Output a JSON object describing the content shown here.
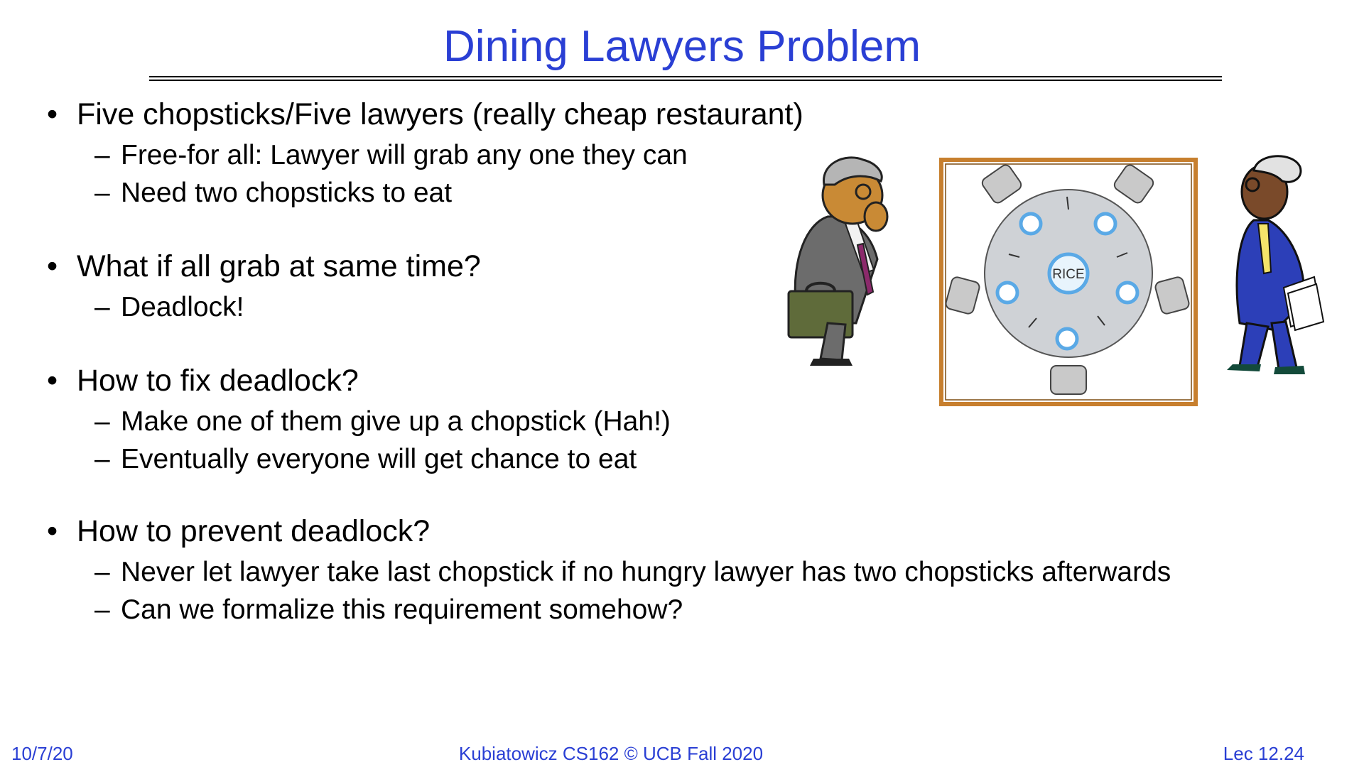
{
  "title": "Dining Lawyers Problem",
  "bullets": [
    {
      "text": "Five chopsticks/Five lawyers (really cheap restaurant)",
      "subs": [
        "Free-for all: Lawyer will grab any one they can",
        "Need two chopsticks to eat"
      ]
    },
    {
      "text": "What if all grab at same time?",
      "subs": [
        "Deadlock!"
      ]
    },
    {
      "text": "How to fix deadlock?",
      "subs": [
        "Make one of them give up a chopstick (Hah!)",
        "Eventually everyone will get chance to eat"
      ]
    },
    {
      "text": "How to prevent deadlock?",
      "subs": [
        "Never let lawyer take last chopstick if no hungry lawyer has two chopsticks afterwards",
        "Can we formalize this requirement somehow?"
      ]
    }
  ],
  "bullet_symbol": "•",
  "dash_symbol": "–",
  "figure": {
    "rice_label": "RICE"
  },
  "footer": {
    "date": "10/7/20",
    "course": "Kubiatowicz CS162 © UCB Fall 2020",
    "lecture": "Lec 12.24"
  },
  "colors": {
    "title": "#2a3fd4",
    "footer": "#2a3fd4",
    "frame": "#c77f2e",
    "table": "#cfd2d6",
    "plate": "#5aa9e6"
  }
}
